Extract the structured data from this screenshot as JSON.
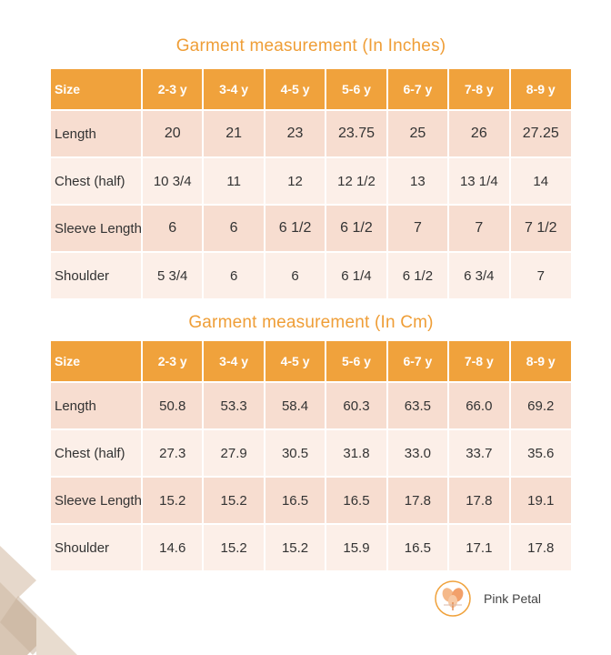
{
  "inches": {
    "title": "Garment measurement (In Inches)",
    "headers": [
      "Size",
      "2-3 y",
      "3-4 y",
      "4-5 y",
      "5-6 y",
      "6-7 y",
      "7-8 y",
      "8-9 y"
    ],
    "rows": [
      {
        "label": "Length",
        "values": [
          "20",
          "21",
          "23",
          "23.75",
          "25",
          "26",
          "27.25"
        ]
      },
      {
        "label": "Chest (half)",
        "values": [
          "10 3/4",
          "11",
          "12",
          "12 1/2",
          "13",
          "13 1/4",
          "14"
        ]
      },
      {
        "label": "Sleeve Length",
        "values": [
          "6",
          "6",
          "6 1/2",
          "6 1/2",
          "7",
          "7",
          "7 1/2"
        ]
      },
      {
        "label": "Shoulder",
        "values": [
          "5 3/4",
          "6",
          "6",
          "6 1/4",
          "6 1/2",
          "6 3/4",
          "7"
        ]
      }
    ]
  },
  "cm": {
    "title": "Garment measurement (In Cm)",
    "headers": [
      "Size",
      "2-3 y",
      "3-4 y",
      "4-5 y",
      "5-6 y",
      "6-7 y",
      "7-8 y",
      "8-9 y"
    ],
    "rows": [
      {
        "label": "Length",
        "values": [
          "50.8",
          "53.3",
          "58.4",
          "60.3",
          "63.5",
          "66.0",
          "69.2"
        ]
      },
      {
        "label": "Chest (half)",
        "values": [
          "27.3",
          "27.9",
          "30.5",
          "31.8",
          "33.0",
          "33.7",
          "35.6"
        ]
      },
      {
        "label": "Sleeve Length",
        "values": [
          "15.2",
          "15.2",
          "16.5",
          "16.5",
          "17.8",
          "17.8",
          "19.1"
        ]
      },
      {
        "label": "Shoulder",
        "values": [
          "14.6",
          "15.2",
          "15.2",
          "15.9",
          "16.5",
          "17.1",
          "17.8"
        ]
      }
    ]
  },
  "brand": {
    "name": "Pink Petal",
    "logo_icon": "pink-petal-logo-icon"
  },
  "colors": {
    "accent": "#ef9e37",
    "header_bg": "#f0a23c",
    "row_alt": "#f7ddd0",
    "row_plain": "#fcefe8",
    "deco_shape": "#d8c6b4"
  }
}
